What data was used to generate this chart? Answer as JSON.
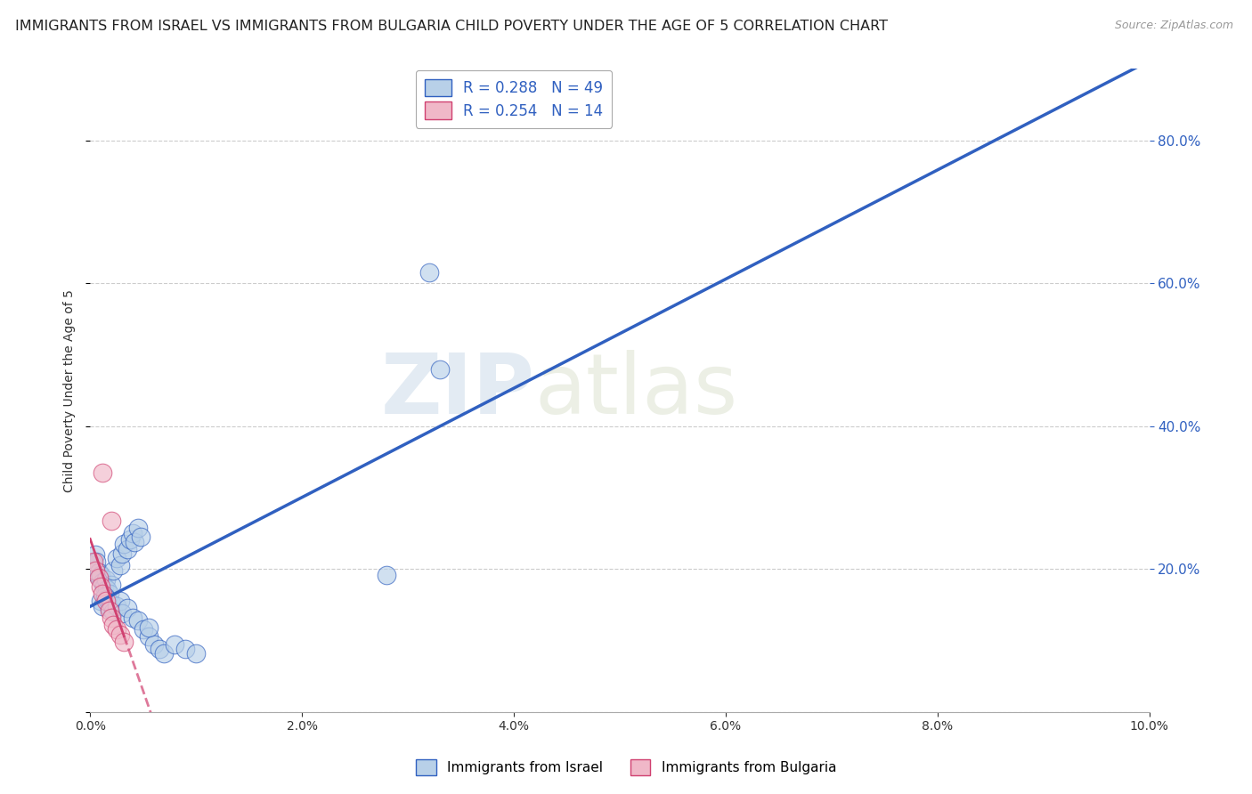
{
  "title": "IMMIGRANTS FROM ISRAEL VS IMMIGRANTS FROM BULGARIA CHILD POVERTY UNDER THE AGE OF 5 CORRELATION CHART",
  "source": "Source: ZipAtlas.com",
  "ylabel": "Child Poverty Under the Age of 5",
  "legend_israel": "R = 0.288   N = 49",
  "legend_bulgaria": "R = 0.254   N = 14",
  "israel_color": "#b8d0e8",
  "bulgaria_color": "#f0b8c8",
  "trend_israel_color": "#3060c0",
  "trend_bulgaria_color": "#d04070",
  "israel_scatter": [
    [
      0.0003,
      0.205
    ],
    [
      0.0004,
      0.195
    ],
    [
      0.0005,
      0.22
    ],
    [
      0.0006,
      0.21
    ],
    [
      0.0008,
      0.195
    ],
    [
      0.0009,
      0.188
    ],
    [
      0.001,
      0.192
    ],
    [
      0.0012,
      0.182
    ],
    [
      0.0013,
      0.175
    ],
    [
      0.0015,
      0.185
    ],
    [
      0.0016,
      0.172
    ],
    [
      0.0018,
      0.165
    ],
    [
      0.002,
      0.178
    ],
    [
      0.0022,
      0.198
    ],
    [
      0.0025,
      0.215
    ],
    [
      0.0028,
      0.205
    ],
    [
      0.003,
      0.222
    ],
    [
      0.0032,
      0.235
    ],
    [
      0.0035,
      0.228
    ],
    [
      0.0038,
      0.242
    ],
    [
      0.004,
      0.25
    ],
    [
      0.0042,
      0.238
    ],
    [
      0.0045,
      0.258
    ],
    [
      0.0048,
      0.245
    ],
    [
      0.001,
      0.155
    ],
    [
      0.0012,
      0.148
    ],
    [
      0.0014,
      0.162
    ],
    [
      0.0016,
      0.158
    ],
    [
      0.0018,
      0.145
    ],
    [
      0.002,
      0.152
    ],
    [
      0.0022,
      0.14
    ],
    [
      0.0025,
      0.148
    ],
    [
      0.0028,
      0.155
    ],
    [
      0.003,
      0.138
    ],
    [
      0.0035,
      0.145
    ],
    [
      0.004,
      0.132
    ],
    [
      0.0045,
      0.128
    ],
    [
      0.005,
      0.115
    ],
    [
      0.0055,
      0.105
    ],
    [
      0.006,
      0.095
    ],
    [
      0.0065,
      0.088
    ],
    [
      0.007,
      0.082
    ],
    [
      0.0055,
      0.118
    ],
    [
      0.008,
      0.095
    ],
    [
      0.009,
      0.088
    ],
    [
      0.01,
      0.082
    ],
    [
      0.028,
      0.192
    ],
    [
      0.032,
      0.615
    ],
    [
      0.033,
      0.48
    ]
  ],
  "bulgaria_scatter": [
    [
      0.0003,
      0.21
    ],
    [
      0.0005,
      0.198
    ],
    [
      0.0008,
      0.188
    ],
    [
      0.001,
      0.175
    ],
    [
      0.0012,
      0.165
    ],
    [
      0.0015,
      0.155
    ],
    [
      0.0018,
      0.142
    ],
    [
      0.002,
      0.132
    ],
    [
      0.0022,
      0.122
    ],
    [
      0.0025,
      0.115
    ],
    [
      0.0028,
      0.108
    ],
    [
      0.0032,
      0.098
    ],
    [
      0.0012,
      0.335
    ],
    [
      0.002,
      0.268
    ]
  ],
  "xlim": [
    0.0,
    0.1
  ],
  "ylim": [
    0.0,
    0.9
  ],
  "yticks_right": [
    0.2,
    0.4,
    0.6,
    0.8
  ],
  "ytick_labels_right": [
    "20.0%",
    "40.0%",
    "60.0%",
    "80.0%"
  ],
  "background_color": "#ffffff",
  "grid_color": "#cccccc",
  "watermark_zip": "ZIP",
  "watermark_atlas": "atlas",
  "title_fontsize": 11.5,
  "axis_label_fontsize": 10
}
